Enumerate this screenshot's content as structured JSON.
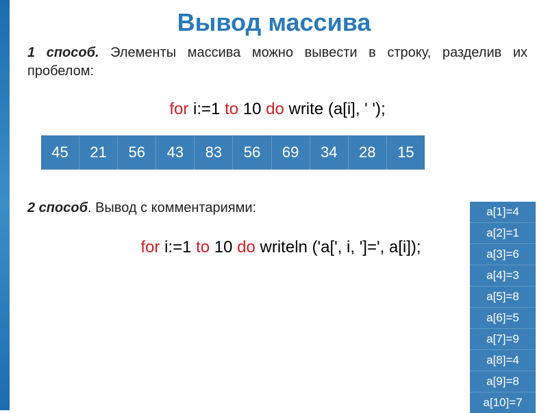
{
  "title": "Вывод массива",
  "method1": {
    "label_bold": "1 способ.",
    "text": " Элементы массива можно вывести в строку, разделив их пробелом:",
    "code_for": "for",
    "code_mid1": " i:=1 ",
    "code_to": "to",
    "code_mid2": " 10 ",
    "code_do": "do",
    "code_end": " write (a[i], ' ');"
  },
  "array_values": [
    "45",
    "21",
    "56",
    "43",
    "83",
    "56",
    "69",
    "34",
    "28",
    "15"
  ],
  "method2": {
    "label_bold": "2 способ",
    "text": ". Вывод с комментариями:",
    "code_for": "for",
    "code_mid1": " i:=1 ",
    "code_to": "to",
    "code_mid2": " 10 ",
    "code_do": "do",
    "code_end": " writeln ('a[', i, ']=', a[i]);"
  },
  "vertical_array": [
    "a[1]=4",
    "a[2]=1",
    "a[3]=6",
    "a[4]=3",
    "a[5]=8",
    "a[6]=5",
    "a[7]=9",
    "a[8]=4",
    "a[9]=8",
    "a[10]=7"
  ],
  "colors": {
    "title": "#2a79b8",
    "keyword": "#d02020",
    "cell_bg": "#3b7fb8",
    "cell_text": "#ffffff"
  }
}
